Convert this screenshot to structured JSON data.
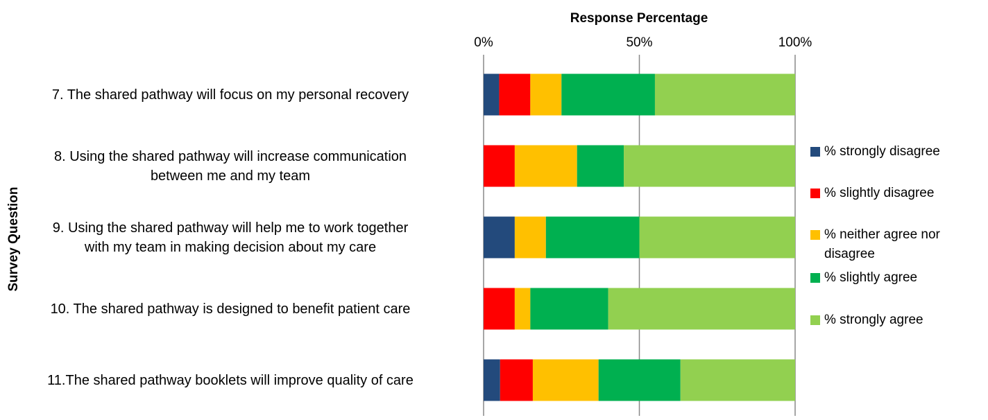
{
  "chart_data": {
    "type": "stacked-barh",
    "title": "Response Percentage",
    "y_axis_label": "Survey Question",
    "categories": [
      "7. The shared pathway will focus on my personal recovery",
      "8. Using the shared pathway will increase communication\nbetween me and my team",
      "9. Using the shared pathway will help me to work together\nwith my team in making decision about my care",
      "10. The shared pathway is designed to benefit patient care",
      "11.The shared pathway booklets will improve quality of care"
    ],
    "series": [
      {
        "name": "% strongly disagree",
        "color": "#234a7c",
        "values": [
          5,
          0,
          10,
          0,
          5.3
        ]
      },
      {
        "name": "% slightly disagree",
        "color": "#ff0000",
        "values": [
          10,
          10,
          0,
          10,
          10.5
        ]
      },
      {
        "name": "% neither agree nor disagree",
        "color": "#ffc000",
        "values": [
          10,
          20,
          10,
          5,
          21.1
        ]
      },
      {
        "name": "% slightly agree",
        "color": "#00b050",
        "values": [
          30,
          15,
          30,
          25,
          26.3
        ]
      },
      {
        "name": "% strongly agree",
        "color": "#92d050",
        "values": [
          45,
          55,
          50,
          60,
          36.8
        ]
      }
    ],
    "xlim": [
      0,
      100
    ],
    "xticks": [
      {
        "value": 0,
        "label": "0%"
      },
      {
        "value": 50,
        "label": "50%"
      },
      {
        "value": 100,
        "label": "100%"
      }
    ],
    "grid": true,
    "legend": "right"
  }
}
